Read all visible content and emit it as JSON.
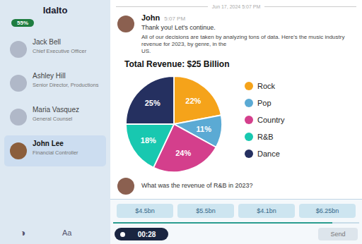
{
  "chart_data": {
    "type": "pie",
    "title": "Total Revenue: $25 Billion",
    "categories": [
      "Rock",
      "Pop",
      "Country",
      "R&B",
      "Dance"
    ],
    "values": [
      22,
      11,
      24,
      18,
      25
    ],
    "value_labels": [
      "22%",
      "11%",
      "24%",
      "18%",
      "25%"
    ],
    "colors": [
      "#F5A31A",
      "#5BAAD4",
      "#D43F8C",
      "#18C8B0",
      "#253060"
    ],
    "data_labels": true,
    "legend": "right",
    "annotations": [
      "Idalto",
      "55%",
      "Jack Bell",
      "Ashley Hill",
      "Maria Vasquez",
      "John Lee",
      "Chief Executive Officer",
      "Senior Director, Productions",
      "General Counsel",
      "Financial Controller",
      "◑",
      "Aa",
      "Jun 17, 2024 5:07 PM",
      "John",
      "5:07 PM",
      "Thank you! Let's continue.",
      "All of our decisions are taken by analyzing tons of data. Here's the music industry revenue for 2023, by genre, in the\nUS.",
      "What was the revenue of R&B in 2023?",
      "$4.5bn",
      "$5.5bn",
      "$4.1bn",
      "$6.25bn",
      "00:28",
      "Send"
    ]
  }
}
